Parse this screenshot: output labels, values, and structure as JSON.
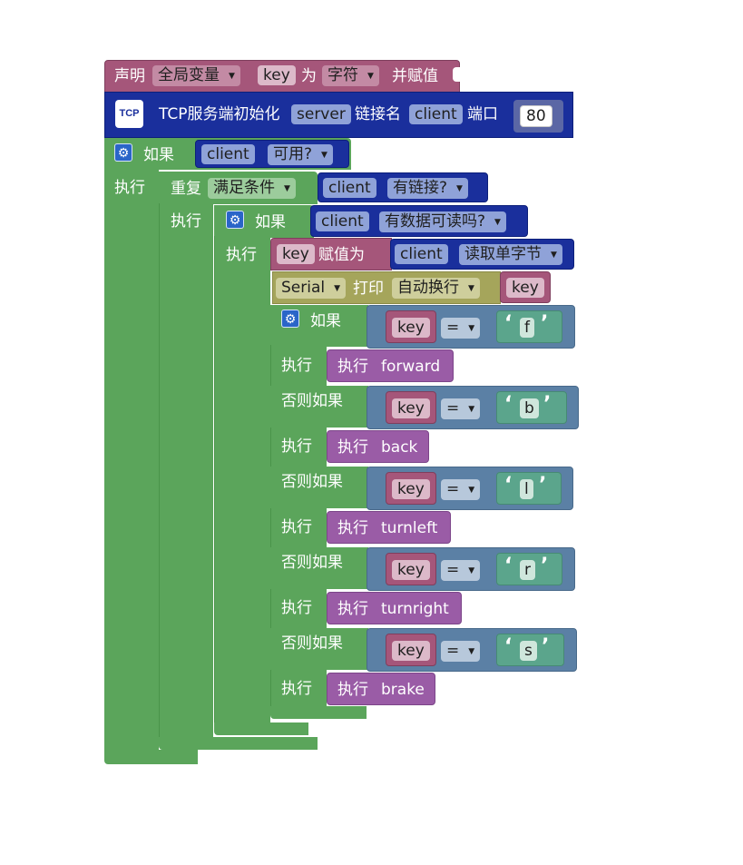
{
  "declare": {
    "label": "声明",
    "scope": "全局变量",
    "var_name": "key",
    "as_label": "为",
    "type": "字符",
    "assign_label": "并赋值"
  },
  "tcp_init": {
    "icon_text": "TCP",
    "label": "TCP服务端初始化",
    "server": "server",
    "link_label": "链接名",
    "client": "client",
    "port_label": "端口",
    "port": "80"
  },
  "if_outer": {
    "if_label": "如果",
    "client": "client",
    "cond": "可用?",
    "do_label": "执行"
  },
  "repeat": {
    "label": "重复",
    "mode": "满足条件",
    "client": "client",
    "cond": "有链接?",
    "do_label": "执行"
  },
  "if_inner": {
    "if_label": "如果",
    "client": "client",
    "cond": "有数据可读吗?",
    "do_label": "执行"
  },
  "assign": {
    "var_name": "key",
    "label": "赋值为",
    "client": "client",
    "method": "读取单字节"
  },
  "serial": {
    "name": "Serial",
    "print_label": "打印",
    "mode": "自动换行",
    "var_name": "key"
  },
  "dispatch": {
    "if_label": "如果",
    "elseif_label": "否则如果",
    "do_label": "执行",
    "call_label": "执行",
    "operator": "=",
    "var_name": "key",
    "branches": [
      {
        "char": "f",
        "proc": "forward"
      },
      {
        "char": "b",
        "proc": "back"
      },
      {
        "char": "l",
        "proc": "turnleft"
      },
      {
        "char": "r",
        "proc": "turnright"
      },
      {
        "char": "s",
        "proc": "brake"
      }
    ]
  },
  "colors": {
    "control": "#5ba55b",
    "variable": "#a5567a",
    "tcp": "#1a2f9c",
    "compare": "#5b80a5",
    "text": "#5ba58c",
    "procedure": "#9a5ca6",
    "serial": "#a5a55b"
  },
  "icons": {
    "settings": "gear-icon",
    "dropdown": "dropdown-arrow-icon",
    "tcp": "tcp-logo-icon"
  }
}
